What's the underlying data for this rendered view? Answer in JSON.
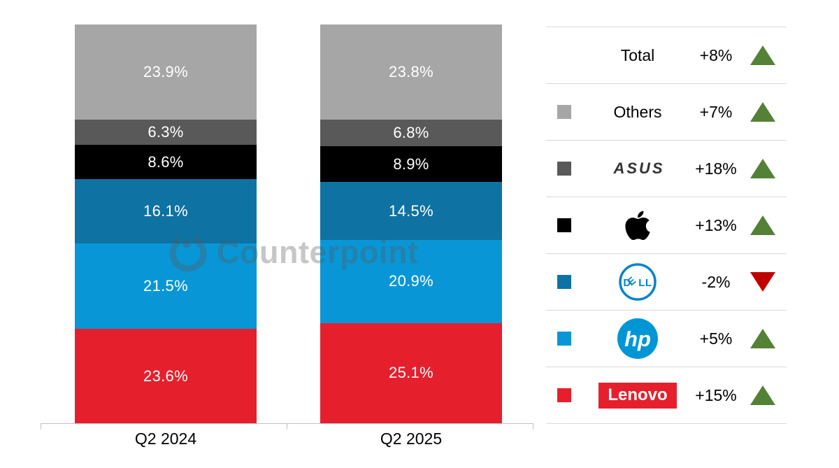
{
  "watermark": {
    "text": "Counterpoint"
  },
  "chart_data": {
    "type": "bar",
    "stacked": true,
    "title": "",
    "unit": "% share of PC shipments",
    "categories": [
      "Q2 2024",
      "Q2 2025"
    ],
    "stack_order_top_to_bottom": [
      "Others",
      "ASUS",
      "Apple",
      "Dell",
      "HP",
      "Lenovo"
    ],
    "series": [
      {
        "name": "Others",
        "color": "#a6a6a6",
        "values": [
          23.9,
          23.8
        ]
      },
      {
        "name": "ASUS",
        "color": "#595959",
        "values": [
          6.3,
          6.8
        ]
      },
      {
        "name": "Apple",
        "color": "#000000",
        "values": [
          8.6,
          8.9
        ]
      },
      {
        "name": "Dell",
        "color": "#0e72a3",
        "values": [
          16.1,
          14.5
        ]
      },
      {
        "name": "HP",
        "color": "#0996d6",
        "values": [
          21.5,
          20.9
        ]
      },
      {
        "name": "Lenovo",
        "color": "#e61f2d",
        "values": [
          23.6,
          25.1
        ]
      }
    ],
    "value_label_format": "one decimal + %",
    "ylim": [
      0,
      100
    ],
    "grid": false,
    "legend_position": "right"
  },
  "legend": {
    "up_color": "#538135",
    "down_color": "#c00000",
    "rows": [
      {
        "label": "Total",
        "logo": "none",
        "swatch": null,
        "change": "+8%",
        "direction": "up"
      },
      {
        "label": "Others",
        "logo": "none",
        "swatch": "#a6a6a6",
        "change": "+7%",
        "direction": "up"
      },
      {
        "label": "ASUS",
        "logo": "asus",
        "logo_text": "ASUS",
        "swatch": "#595959",
        "change": "+18%",
        "direction": "up"
      },
      {
        "label": "Apple",
        "logo": "apple",
        "swatch": "#000000",
        "change": "+13%",
        "direction": "up"
      },
      {
        "label": "Dell",
        "logo": "dell",
        "logo_text": "DELL",
        "swatch": "#0e72a3",
        "change": "-2%",
        "direction": "down"
      },
      {
        "label": "HP",
        "logo": "hp",
        "logo_text": "hp",
        "swatch": "#0996d6",
        "change": "+5%",
        "direction": "up"
      },
      {
        "label": "Lenovo",
        "logo": "lenovo",
        "logo_text": "Lenovo",
        "swatch": "#e61f2d",
        "change": "+15%",
        "direction": "up"
      }
    ]
  }
}
